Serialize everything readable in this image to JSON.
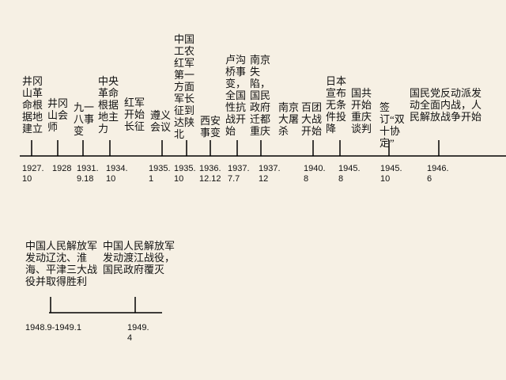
{
  "timelines": [
    {
      "events": [
        {
          "date": "1927.10",
          "labels": [
            "井冈山革命根据地建立"
          ]
        },
        {
          "date": "1928",
          "labels": [
            "井冈山会师"
          ]
        },
        {
          "date": "1931.9.18",
          "labels": [
            "九一八事变"
          ]
        },
        {
          "date": "1934.10",
          "labels": [
            "中央革命根据地主力",
            "红军开始长征"
          ]
        },
        {
          "date": "1935.1",
          "labels": [
            "遵义会议"
          ]
        },
        {
          "date": "1935.10",
          "labels": [
            "中国工农红军第一方面军长征到达陕北"
          ]
        },
        {
          "date": "1936.12.12",
          "labels": [
            "西安事变"
          ]
        },
        {
          "date": "1937.7.7",
          "labels": [
            "卢沟桥事变，全国性抗战开始"
          ]
        },
        {
          "date": "1937.12",
          "labels": [
            "南京失陷，国民政府迁都重庆",
            "南京大屠杀"
          ]
        },
        {
          "date": "1940.8",
          "labels": [
            "百团大战开始"
          ]
        },
        {
          "date": "1945.8",
          "labels": [
            "日本宣布无条件投降",
            "国共开始重庆谈判"
          ]
        },
        {
          "date": "1945.10",
          "labels": [
            "签订“双十协定”"
          ]
        },
        {
          "date": "1946.6",
          "labels": [
            "国民党反动派发动全面内战，人民解放战争开始"
          ]
        }
      ]
    },
    {
      "events": [
        {
          "date": "1948.9-1949.1",
          "labels": [
            "中国人民解放军发动辽沈、淮海、平津三大战役并取得胜利"
          ]
        },
        {
          "date": "1949.4",
          "labels": [
            "中国人民解放军发动渡江战役，国民政府覆灭"
          ]
        }
      ]
    }
  ]
}
